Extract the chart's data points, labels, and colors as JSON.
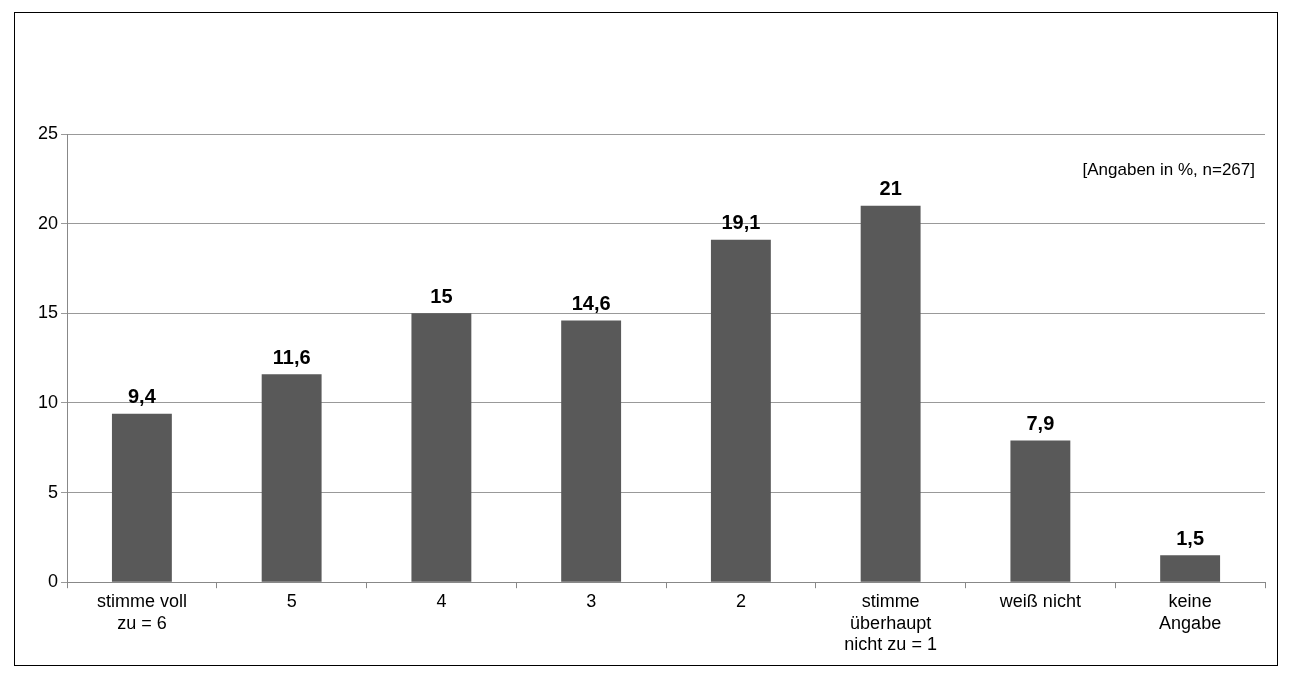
{
  "chart_data": {
    "type": "bar",
    "categories": [
      "stimme voll zu = 6",
      "5",
      "4",
      "3",
      "2",
      "stimme überhaupt nicht zu = 1",
      "weiß nicht",
      "keine Angabe"
    ],
    "values": [
      9.4,
      11.6,
      15,
      14.6,
      19.1,
      21,
      7.9,
      1.5
    ],
    "color": "#595959",
    "value_labels": [
      "9,4",
      "11,6",
      "15",
      "14,6",
      "19,1",
      "21",
      "7,9",
      "1,5"
    ],
    "ylim": [
      0,
      25
    ],
    "yticks": [
      0,
      5,
      10,
      15,
      20,
      25
    ],
    "grid": "y",
    "legend": false,
    "annotations": [
      "[Angaben in %, n=267]"
    ]
  }
}
